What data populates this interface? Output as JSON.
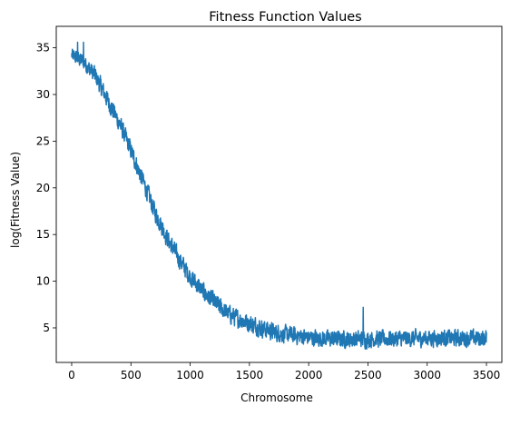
{
  "chart_data": {
    "type": "line",
    "title": "Fitness Function Values",
    "xlabel": "Chromosome",
    "ylabel": "log(Fitness Value)",
    "xlim": [
      -130,
      3630
    ],
    "ylim": [
      1.3,
      37.3
    ],
    "xticks": [
      0,
      500,
      1000,
      1500,
      2000,
      2500,
      3000,
      3500
    ],
    "yticks": [
      5,
      10,
      15,
      20,
      25,
      30,
      35
    ],
    "grid": false,
    "legend": "none",
    "series": [
      {
        "color": "#1f77b4",
        "x_start": 0,
        "x_end": 3500,
        "trend": [
          [
            0,
            34.2
          ],
          [
            100,
            33.5
          ],
          [
            200,
            32.0
          ],
          [
            300,
            29.5
          ],
          [
            400,
            27.0
          ],
          [
            500,
            24.0
          ],
          [
            600,
            20.8
          ],
          [
            700,
            17.5
          ],
          [
            800,
            14.8
          ],
          [
            900,
            12.5
          ],
          [
            1000,
            10.5
          ],
          [
            1100,
            9.0
          ],
          [
            1200,
            7.8
          ],
          [
            1300,
            6.7
          ],
          [
            1400,
            6.0
          ],
          [
            1500,
            5.5
          ],
          [
            1600,
            5.0
          ],
          [
            1700,
            4.6
          ],
          [
            1800,
            4.3
          ],
          [
            2000,
            4.0
          ],
          [
            2200,
            3.8
          ],
          [
            2500,
            3.8
          ],
          [
            3000,
            3.9
          ],
          [
            3500,
            3.9
          ]
        ],
        "noise": [
          [
            0,
            1.0
          ],
          [
            200,
            1.3
          ],
          [
            1000,
            1.3
          ],
          [
            1500,
            1.3
          ],
          [
            2000,
            1.2
          ],
          [
            3500,
            1.2
          ]
        ],
        "spikes": [
          [
            50,
            35.6
          ],
          [
            100,
            35.6
          ],
          [
            2460,
            7.2
          ]
        ]
      }
    ]
  }
}
